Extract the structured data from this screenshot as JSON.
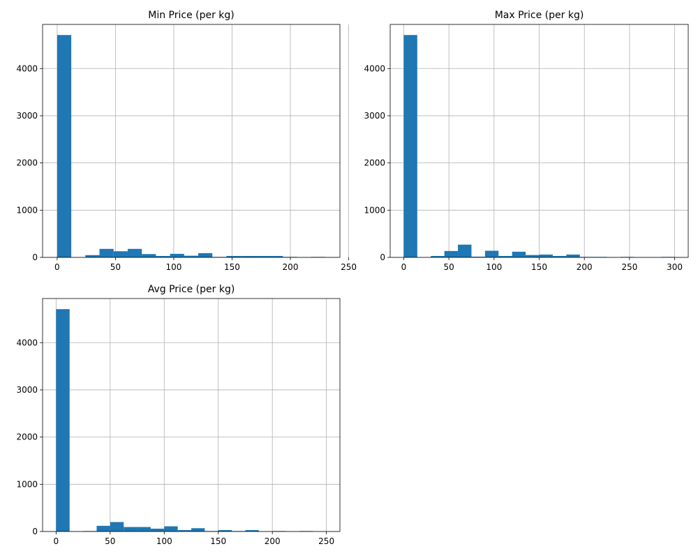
{
  "chart_data": [
    {
      "type": "bar",
      "title": "Min Price (per kg)",
      "xlim": [
        -12.5,
        242.5
      ],
      "ylim": [
        0,
        4935
      ],
      "xticks": [
        0,
        50,
        100,
        150,
        200,
        250
      ],
      "yticks": [
        0,
        1000,
        2000,
        3000,
        4000
      ],
      "grid": true,
      "bar_color": "#1f77b4",
      "bins": [
        {
          "x0": 0,
          "x1": 12.1,
          "count": 4710
        },
        {
          "x0": 24.2,
          "x1": 36.3,
          "count": 48
        },
        {
          "x0": 36.3,
          "x1": 48.4,
          "count": 180
        },
        {
          "x0": 48.4,
          "x1": 60.5,
          "count": 130
        },
        {
          "x0": 60.5,
          "x1": 72.6,
          "count": 180
        },
        {
          "x0": 72.6,
          "x1": 84.7,
          "count": 70
        },
        {
          "x0": 84.7,
          "x1": 96.8,
          "count": 30
        },
        {
          "x0": 96.8,
          "x1": 108.9,
          "count": 75
        },
        {
          "x0": 108.9,
          "x1": 121.0,
          "count": 35
        },
        {
          "x0": 121.0,
          "x1": 133.1,
          "count": 90
        },
        {
          "x0": 133.1,
          "x1": 145.2,
          "count": 10
        },
        {
          "x0": 145.2,
          "x1": 157.3,
          "count": 30
        },
        {
          "x0": 157.3,
          "x1": 169.4,
          "count": 30
        },
        {
          "x0": 169.4,
          "x1": 181.5,
          "count": 30
        },
        {
          "x0": 181.5,
          "x1": 193.6,
          "count": 30
        },
        {
          "x0": 193.6,
          "x1": 205.7,
          "count": 10
        },
        {
          "x0": 217.8,
          "x1": 229.9,
          "count": 10
        }
      ]
    },
    {
      "type": "bar",
      "title": "Max Price (per kg)",
      "xlim": [
        -15,
        315
      ],
      "ylim": [
        0,
        4935
      ],
      "xticks": [
        0,
        50,
        100,
        150,
        200,
        250,
        300
      ],
      "yticks": [
        0,
        1000,
        2000,
        3000,
        4000
      ],
      "grid": true,
      "bar_color": "#1f77b4",
      "bins": [
        {
          "x0": 0,
          "x1": 15,
          "count": 4710
        },
        {
          "x0": 30,
          "x1": 45,
          "count": 30
        },
        {
          "x0": 45,
          "x1": 60,
          "count": 135
        },
        {
          "x0": 60,
          "x1": 75,
          "count": 270
        },
        {
          "x0": 75,
          "x1": 90,
          "count": 15
        },
        {
          "x0": 90,
          "x1": 105,
          "count": 140
        },
        {
          "x0": 105,
          "x1": 120,
          "count": 30
        },
        {
          "x0": 120,
          "x1": 135,
          "count": 120
        },
        {
          "x0": 135,
          "x1": 150,
          "count": 50
        },
        {
          "x0": 150,
          "x1": 165,
          "count": 60
        },
        {
          "x0": 165,
          "x1": 180,
          "count": 30
        },
        {
          "x0": 180,
          "x1": 195,
          "count": 60
        },
        {
          "x0": 195,
          "x1": 210,
          "count": 10
        },
        {
          "x0": 210,
          "x1": 225,
          "count": 10
        },
        {
          "x0": 240,
          "x1": 255,
          "count": 10
        },
        {
          "x0": 285,
          "x1": 300,
          "count": 10
        }
      ]
    },
    {
      "type": "bar",
      "title": "Avg Price (per kg)",
      "xlim": [
        -12.5,
        262.5
      ],
      "ylim": [
        0,
        4935
      ],
      "xticks": [
        0,
        50,
        100,
        150,
        200,
        250
      ],
      "yticks": [
        0,
        1000,
        2000,
        3000,
        4000
      ],
      "grid": true,
      "bar_color": "#1f77b4",
      "bins": [
        {
          "x0": 0,
          "x1": 12.5,
          "count": 4710
        },
        {
          "x0": 25,
          "x1": 37.5,
          "count": 10
        },
        {
          "x0": 37.5,
          "x1": 50,
          "count": 120
        },
        {
          "x0": 50,
          "x1": 62.5,
          "count": 200
        },
        {
          "x0": 62.5,
          "x1": 75,
          "count": 95
        },
        {
          "x0": 75,
          "x1": 87.5,
          "count": 95
        },
        {
          "x0": 87.5,
          "x1": 100,
          "count": 60
        },
        {
          "x0": 100,
          "x1": 112.5,
          "count": 110
        },
        {
          "x0": 112.5,
          "x1": 125,
          "count": 30
        },
        {
          "x0": 125,
          "x1": 137.5,
          "count": 70
        },
        {
          "x0": 137.5,
          "x1": 150,
          "count": 10
        },
        {
          "x0": 150,
          "x1": 162.5,
          "count": 30
        },
        {
          "x0": 162.5,
          "x1": 175,
          "count": 10
        },
        {
          "x0": 175,
          "x1": 187.5,
          "count": 30
        },
        {
          "x0": 200,
          "x1": 212.5,
          "count": 10
        },
        {
          "x0": 225,
          "x1": 237.5,
          "count": 10
        }
      ]
    }
  ]
}
